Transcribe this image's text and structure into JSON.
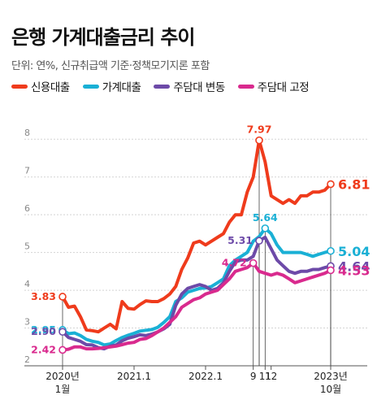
{
  "title": "은행 가계대출금리 추이",
  "subtitle": "단위: 연%, 신규취급액 기준·정책모기지론 포함",
  "colors": {
    "credit": "#ef3b1c",
    "household": "#1ab0d5",
    "variable": "#6d4aa8",
    "fixed": "#d92a8e"
  },
  "chart_data": {
    "type": "line",
    "title": "은행 가계대출금리 추이",
    "ylim": [
      2,
      8.5
    ],
    "y_ticks": [
      "2",
      "3",
      "4",
      "5",
      "6",
      "7",
      "8"
    ],
    "x_tick_labels": [
      {
        "label": "2020년",
        "sub": "1월",
        "index": 0
      },
      {
        "label": "2021.1",
        "sub": "",
        "index": 12
      },
      {
        "label": "2022.1",
        "sub": "",
        "index": 24
      },
      {
        "label": "9",
        "sub": "",
        "index": 32
      },
      {
        "label": "11",
        "sub": "",
        "index": 34
      },
      {
        "label": "12",
        "sub": "",
        "index": 35
      },
      {
        "label": "2023년",
        "sub": "10월",
        "index": 45
      }
    ],
    "grid": true,
    "legend_position": "top-left",
    "series": [
      {
        "name": "신용대출",
        "key": "credit",
        "values": [
          3.83,
          3.55,
          3.58,
          3.3,
          2.95,
          2.93,
          2.9,
          3.0,
          3.1,
          2.98,
          3.7,
          3.52,
          3.5,
          3.62,
          3.72,
          3.7,
          3.7,
          3.78,
          3.9,
          4.1,
          4.55,
          4.85,
          5.25,
          5.3,
          5.2,
          5.3,
          5.4,
          5.5,
          5.8,
          6.0,
          6.0,
          6.6,
          7.0,
          7.97,
          7.4,
          6.5,
          6.4,
          6.3,
          6.4,
          6.3,
          6.5,
          6.5,
          6.6,
          6.6,
          6.65,
          6.81
        ]
      },
      {
        "name": "가계대출",
        "key": "household",
        "values": [
          2.95,
          2.85,
          2.87,
          2.8,
          2.7,
          2.65,
          2.62,
          2.55,
          2.58,
          2.67,
          2.75,
          2.81,
          2.86,
          2.92,
          2.94,
          2.96,
          3.02,
          3.15,
          3.3,
          3.7,
          3.8,
          3.95,
          4.0,
          4.05,
          4.06,
          4.1,
          4.2,
          4.3,
          4.65,
          4.8,
          4.9,
          5.0,
          5.3,
          5.42,
          5.64,
          5.5,
          5.2,
          5.0,
          5.0,
          5.0,
          5.0,
          4.95,
          4.9,
          4.95,
          5.0,
          5.04
        ]
      },
      {
        "name": "주담대 변동",
        "key": "variable",
        "values": [
          2.9,
          2.75,
          2.7,
          2.65,
          2.56,
          2.55,
          2.48,
          2.45,
          2.52,
          2.55,
          2.66,
          2.73,
          2.77,
          2.82,
          2.8,
          2.84,
          2.9,
          2.98,
          3.1,
          3.6,
          3.9,
          4.05,
          4.1,
          4.15,
          4.1,
          4.0,
          4.05,
          4.2,
          4.5,
          4.75,
          4.8,
          4.8,
          4.9,
          5.31,
          5.4,
          5.1,
          4.8,
          4.65,
          4.5,
          4.45,
          4.5,
          4.5,
          4.55,
          4.55,
          4.6,
          4.64
        ]
      },
      {
        "name": "주담대 고정",
        "key": "fixed",
        "values": [
          2.42,
          2.44,
          2.5,
          2.5,
          2.45,
          2.45,
          2.46,
          2.48,
          2.5,
          2.52,
          2.56,
          2.6,
          2.62,
          2.7,
          2.72,
          2.8,
          2.9,
          3.0,
          3.15,
          3.3,
          3.55,
          3.65,
          3.75,
          3.8,
          3.9,
          3.95,
          4.0,
          4.15,
          4.3,
          4.5,
          4.55,
          4.6,
          4.72,
          4.5,
          4.45,
          4.4,
          4.45,
          4.4,
          4.3,
          4.2,
          4.25,
          4.3,
          4.35,
          4.4,
          4.45,
          4.53
        ]
      }
    ],
    "annotations": [
      {
        "series": "credit",
        "index": 0,
        "text": "3.83",
        "side": "left"
      },
      {
        "series": "household",
        "index": 0,
        "text": "2.95",
        "side": "left"
      },
      {
        "series": "variable",
        "index": 0,
        "text": "2.90",
        "side": "left"
      },
      {
        "series": "fixed",
        "index": 0,
        "text": "2.42",
        "side": "left"
      },
      {
        "series": "credit",
        "index": 33,
        "text": "7.97",
        "side": "top"
      },
      {
        "series": "household",
        "index": 34,
        "text": "5.64",
        "side": "top"
      },
      {
        "series": "variable",
        "index": 33,
        "text": "5.31",
        "side": "left"
      },
      {
        "series": "fixed",
        "index": 32,
        "text": "4.72",
        "side": "left"
      },
      {
        "series": "credit",
        "index": 45,
        "text": "6.81",
        "side": "right"
      },
      {
        "series": "household",
        "index": 45,
        "text": "5.04",
        "side": "right"
      },
      {
        "series": "variable",
        "index": 45,
        "text": "4.64",
        "side": "right"
      },
      {
        "series": "fixed",
        "index": 45,
        "text": "4.53",
        "side": "right"
      }
    ]
  }
}
